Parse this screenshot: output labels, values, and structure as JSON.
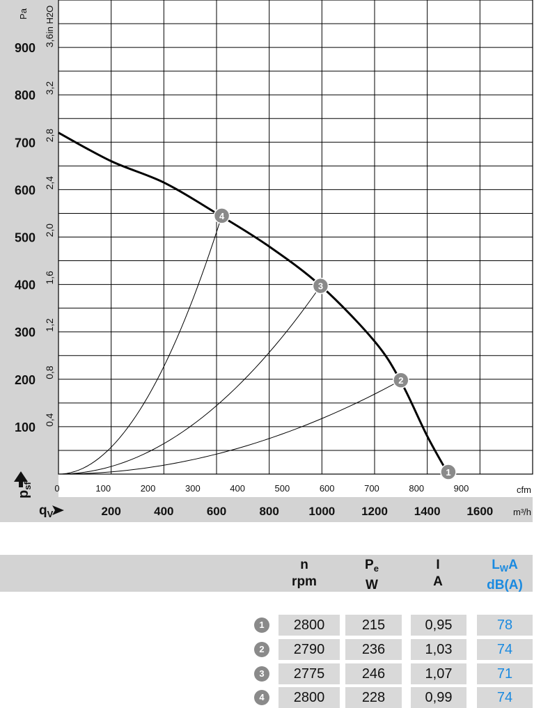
{
  "chart_data": {
    "type": "line",
    "left_axis_unit": "Pa",
    "right_axis_unit": "in H2O",
    "y_ticks_pa": [
      100,
      200,
      300,
      400,
      500,
      600,
      700,
      800,
      900
    ],
    "y_ticks_inh2o": [
      "0,4",
      "0,8",
      "1,2",
      "1,6",
      "2,0",
      "2,4",
      "2,8",
      "3,2",
      "3,6"
    ],
    "ylim_pa": [
      0,
      1000
    ],
    "x_ticks_cfm": [
      0,
      100,
      200,
      300,
      400,
      500,
      600,
      700,
      800,
      900
    ],
    "x_unit_cfm": "cfm",
    "x_ticks_m3h": [
      200,
      400,
      600,
      800,
      1000,
      1200,
      1400,
      1600
    ],
    "x_unit_m3h": "m³/h",
    "xlim_m3h": [
      0,
      1800
    ],
    "ylabel": "p",
    "ylabel_sub": "sf",
    "xlabel": "q",
    "xlabel_sub": "V",
    "grid": true,
    "fan_curve": {
      "x": [
        0,
        200,
        400,
        600,
        800,
        1000,
        1200,
        1300,
        1400,
        1480
      ],
      "y": [
        720,
        660,
        615,
        550,
        480,
        395,
        280,
        195,
        80,
        0
      ]
    },
    "system_curves": [
      {
        "label": "2",
        "point": [
          1300,
          198
        ]
      },
      {
        "label": "3",
        "point": [
          995,
          397
        ]
      },
      {
        "label": "4",
        "point": [
          620,
          545
        ]
      }
    ],
    "operating_points": [
      {
        "label": "1",
        "x": 1480,
        "y": 0
      },
      {
        "label": "2",
        "x": 1300,
        "y": 198
      },
      {
        "label": "3",
        "x": 995,
        "y": 397
      },
      {
        "label": "4",
        "x": 620,
        "y": 545
      }
    ]
  },
  "table": {
    "headers": [
      {
        "top": "n",
        "bottom": "rpm"
      },
      {
        "top": "P",
        "top_sub": "e",
        "bottom": "W"
      },
      {
        "top": "I",
        "bottom": "A"
      },
      {
        "top": "L",
        "top_sub": "W",
        "top_suffix": "A",
        "bottom": "dB(A)"
      }
    ],
    "rows": [
      {
        "badge": "1",
        "n": "2800",
        "pe": "215",
        "i": "0,95",
        "lwa": "78"
      },
      {
        "badge": "2",
        "n": "2790",
        "pe": "236",
        "i": "1,03",
        "lwa": "74"
      },
      {
        "badge": "3",
        "n": "2775",
        "pe": "246",
        "i": "1,07",
        "lwa": "71"
      },
      {
        "badge": "4",
        "n": "2800",
        "pe": "228",
        "i": "0,99",
        "lwa": "74"
      }
    ]
  },
  "colors": {
    "accent_blue": "#1a8ae0",
    "panel_gray": "#d3d3d3",
    "badge_gray": "#8a8a8a"
  }
}
